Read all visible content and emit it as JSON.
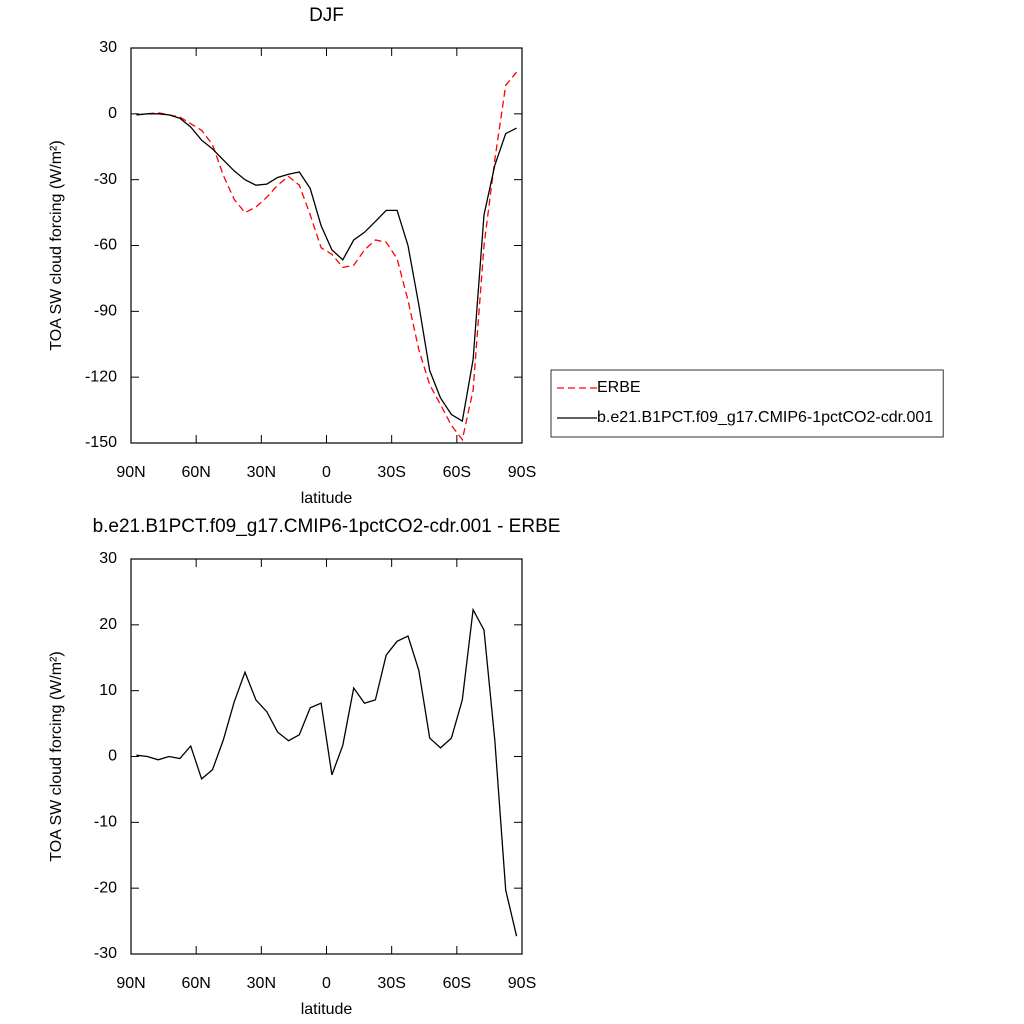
{
  "chart_data": [
    {
      "type": "line",
      "title": "DJF",
      "xlabel": "latitude",
      "ylabel": "TOA SW cloud forcing (W/m²)",
      "x": [
        87.5,
        82.5,
        77.5,
        72.5,
        67.5,
        62.5,
        57.5,
        52.5,
        47.5,
        42.5,
        37.5,
        32.5,
        27.5,
        22.5,
        17.5,
        12.5,
        7.5,
        2.5,
        -2.5,
        -7.5,
        -12.5,
        -17.5,
        -22.5,
        -27.5,
        -32.5,
        -37.5,
        -42.5,
        -47.5,
        -52.5,
        -57.5,
        -62.5,
        -67.5,
        -72.5,
        -77.5,
        -82.5,
        -87.5
      ],
      "series": [
        {
          "name": "ERBE",
          "color": "#ff0000",
          "dash": "dashed",
          "values": [
            -0.5,
            0,
            0.5,
            -0.5,
            -1.5,
            -4.5,
            -7.5,
            -14,
            -28,
            -39,
            -45,
            -42.5,
            -38,
            -32.5,
            -28.5,
            -32.5,
            -46,
            -61,
            -64,
            -70,
            -69,
            -62,
            -57.5,
            -58.5,
            -66,
            -85,
            -107.5,
            -123.5,
            -132.5,
            -142,
            -148.5,
            -126,
            -60,
            -21,
            13,
            19
          ]
        },
        {
          "name": "b.e21.B1PCT.f09_g17.CMIP6-1pctCO2-cdr.001",
          "color": "#000000",
          "dash": "solid",
          "values": [
            -0.5,
            0,
            0,
            -0.5,
            -2,
            -6,
            -12,
            -16,
            -21,
            -26,
            -30,
            -32.5,
            -32,
            -29,
            -27.5,
            -26.5,
            -34,
            -51,
            -62,
            -66.5,
            -57.5,
            -54,
            -49,
            -44,
            -44,
            -60,
            -87,
            -117,
            -129.5,
            -137,
            -140,
            -112,
            -46,
            -23.5,
            -9,
            -6.5
          ]
        }
      ],
      "xlim": [
        90,
        -90
      ],
      "xticks": [
        {
          "value": 90,
          "label": "90N"
        },
        {
          "value": 60,
          "label": "60N"
        },
        {
          "value": 30,
          "label": "30N"
        },
        0,
        {
          "value": -30,
          "label": "30S"
        },
        {
          "value": -60,
          "label": "60S"
        },
        {
          "value": -90,
          "label": "90S"
        }
      ],
      "ylim": [
        -150,
        30
      ],
      "yticks": [
        -150,
        -120,
        -90,
        -60,
        -30,
        0,
        30
      ],
      "legend": "right"
    },
    {
      "type": "line",
      "title": "b.e21.B1PCT.f09_g17.CMIP6-1pctCO2-cdr.001 - ERBE",
      "xlabel": "latitude",
      "ylabel": "TOA SW cloud forcing (W/m²)",
      "x": [
        87.5,
        82.5,
        77.5,
        72.5,
        67.5,
        62.5,
        57.5,
        52.5,
        47.5,
        42.5,
        37.5,
        32.5,
        27.5,
        22.5,
        17.5,
        12.5,
        7.5,
        2.5,
        -2.5,
        -7.5,
        -12.5,
        -17.5,
        -22.5,
        -27.5,
        -32.5,
        -37.5,
        -42.5,
        -47.5,
        -52.5,
        -57.5,
        -62.5,
        -67.5,
        -72.5,
        -77.5,
        -82.5,
        -87.5
      ],
      "values": [
        0.2,
        0,
        -0.5,
        0,
        -0.3,
        1.6,
        -3.4,
        -2,
        2.5,
        8.3,
        12.8,
        8.6,
        6.8,
        3.7,
        2.4,
        3.3,
        7.4,
        8.1,
        -2.8,
        1.7,
        10.4,
        8.1,
        8.6,
        15.4,
        17.5,
        18.3,
        13.1,
        2.8,
        1.3,
        2.8,
        8.6,
        22.3,
        19.2,
        2.5,
        -20.3,
        -27.3
      ],
      "color": "#000000",
      "xlim": [
        90,
        -90
      ],
      "xticks": [
        {
          "value": 90,
          "label": "90N"
        },
        {
          "value": 60,
          "label": "60N"
        },
        {
          "value": 30,
          "label": "30N"
        },
        0,
        {
          "value": -30,
          "label": "30S"
        },
        {
          "value": -60,
          "label": "60S"
        },
        {
          "value": -90,
          "label": "90S"
        }
      ],
      "ylim": [
        -30,
        30
      ],
      "yticks": [
        -30,
        -20,
        -10,
        0,
        10,
        20,
        30
      ]
    }
  ]
}
